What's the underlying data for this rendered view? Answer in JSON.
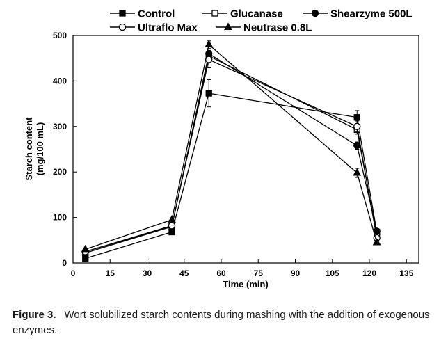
{
  "chart_data": {
    "type": "line",
    "title": "",
    "xlabel": "Time (min)",
    "ylabel": "Starch content",
    "ylabel_units": "(mg/100 mL)",
    "xlim": [
      0,
      140
    ],
    "ylim": [
      0,
      500
    ],
    "xticks": [
      0,
      15,
      30,
      45,
      60,
      75,
      90,
      105,
      120,
      135
    ],
    "yticks": [
      0,
      100,
      200,
      300,
      400,
      500
    ],
    "grid": false,
    "legend_position": "top",
    "series": [
      {
        "name": "Control",
        "marker": "filled-square",
        "x": [
          5,
          40,
          55,
          115,
          123
        ],
        "y": [
          10,
          68,
          373,
          320,
          68
        ],
        "err": [
          0,
          0,
          30,
          15,
          0
        ]
      },
      {
        "name": "Glucanase",
        "marker": "open-square",
        "x": [
          5,
          40,
          55,
          115,
          123
        ],
        "y": [
          22,
          80,
          455,
          293,
          60
        ],
        "err": [
          0,
          0,
          12,
          10,
          0
        ]
      },
      {
        "name": "Shearzyme 500L",
        "marker": "filled-circle",
        "x": [
          5,
          40,
          55,
          115,
          123
        ],
        "y": [
          25,
          80,
          460,
          258,
          70
        ],
        "err": [
          0,
          0,
          10,
          8,
          0
        ]
      },
      {
        "name": "Ultraflo Max",
        "marker": "open-circle",
        "x": [
          5,
          40,
          55,
          115,
          123
        ],
        "y": [
          25,
          82,
          447,
          300,
          55
        ],
        "err": [
          0,
          0,
          18,
          12,
          0
        ]
      },
      {
        "name": "Neutrase 0.8L",
        "marker": "filled-triangle",
        "x": [
          5,
          40,
          55,
          115,
          123
        ],
        "y": [
          30,
          95,
          480,
          198,
          45
        ],
        "err": [
          0,
          0,
          8,
          10,
          0
        ]
      }
    ]
  },
  "caption": {
    "label": "Figure 3.",
    "text": "Wort solubilized starch contents during mashing with the addition of exogenous enzymes."
  }
}
